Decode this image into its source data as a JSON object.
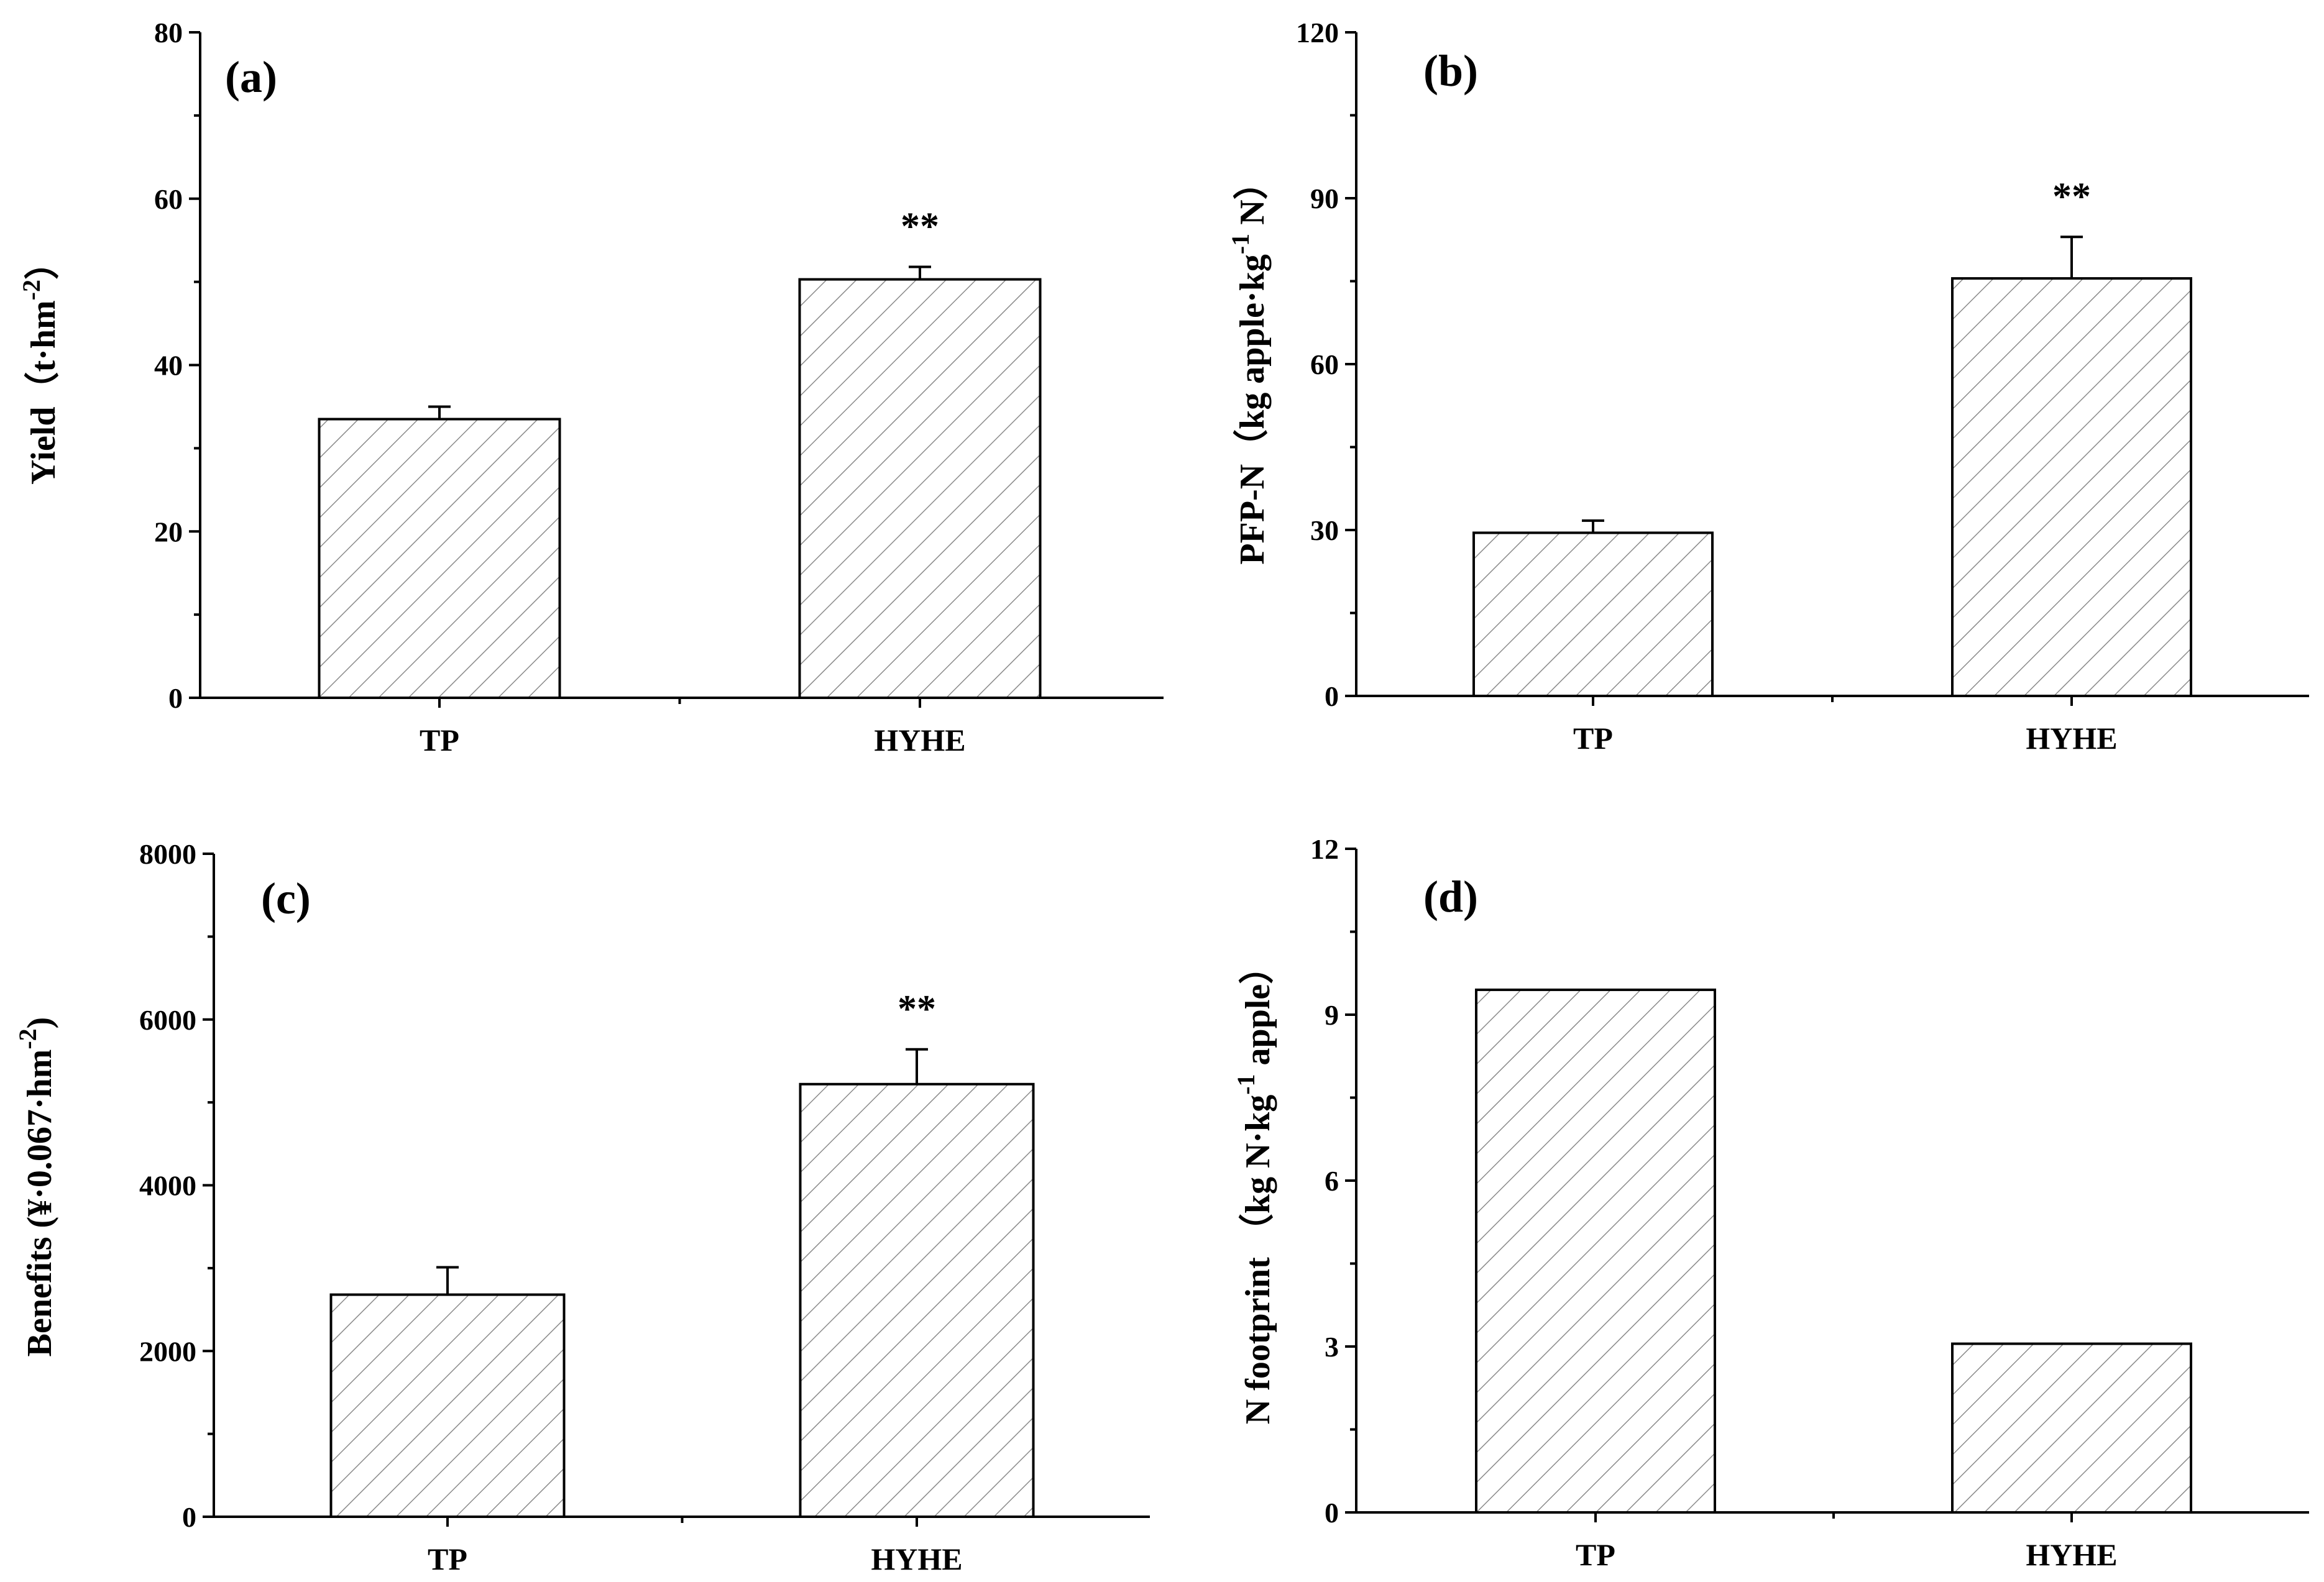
{
  "figure": {
    "bar_fill": "#ffffff",
    "hatch_color": "#8a8a8a",
    "axis_color": "#000000"
  },
  "chart_data": [
    {
      "panel": "(a)",
      "type": "bar",
      "categories": [
        "TP",
        "HYHE"
      ],
      "values": [
        33.5,
        50.3
      ],
      "errors": [
        1.5,
        1.5
      ],
      "significance": [
        "",
        "**"
      ],
      "ylabel": "Yield（t·hm",
      "ylabel_sup": "-2",
      "ylabel_tail": "）",
      "ylim": [
        0,
        80
      ],
      "yticks": [
        0,
        20,
        40,
        60,
        80
      ],
      "ytick_labels": [
        "0",
        "20",
        "40",
        "60",
        "80"
      ]
    },
    {
      "panel": "(b)",
      "type": "bar",
      "categories": [
        "TP",
        "HYHE"
      ],
      "values": [
        29.5,
        75.5
      ],
      "errors": [
        2.2,
        7.5
      ],
      "significance": [
        "",
        "**"
      ],
      "ylabel": "PFP-N（kg apple·kg",
      "ylabel_sup": "-1",
      "ylabel_tail": " N）",
      "ylim": [
        0,
        120
      ],
      "yticks": [
        0,
        30,
        60,
        90,
        120
      ],
      "ytick_labels": [
        "0",
        "30",
        "60",
        "90",
        "120"
      ]
    },
    {
      "panel": "(c)",
      "type": "bar",
      "categories": [
        "TP",
        "HYHE"
      ],
      "values": [
        2680,
        5220
      ],
      "errors": [
        330,
        420
      ],
      "significance": [
        "",
        "**"
      ],
      "ylabel": "Benefits (¥·0.067·hm",
      "ylabel_sup": "-2",
      "ylabel_tail": ")",
      "ylim": [
        0,
        8000
      ],
      "yticks": [
        0,
        2000,
        4000,
        6000,
        8000
      ],
      "ytick_labels": [
        "0",
        "2000",
        "4000",
        "6000",
        "8000"
      ]
    },
    {
      "panel": "(d)",
      "type": "bar",
      "categories": [
        "TP",
        "HYHE"
      ],
      "values": [
        9.45,
        3.05
      ],
      "errors": [
        0,
        0
      ],
      "significance": [
        "",
        ""
      ],
      "ylabel": "N footprint （kg N·kg",
      "ylabel_sup": "-1",
      "ylabel_tail": " apple）",
      "ylim": [
        0,
        12
      ],
      "yticks": [
        0,
        3,
        6,
        9,
        12
      ],
      "ytick_labels": [
        "0",
        "3",
        "6",
        "9",
        "12"
      ]
    }
  ]
}
